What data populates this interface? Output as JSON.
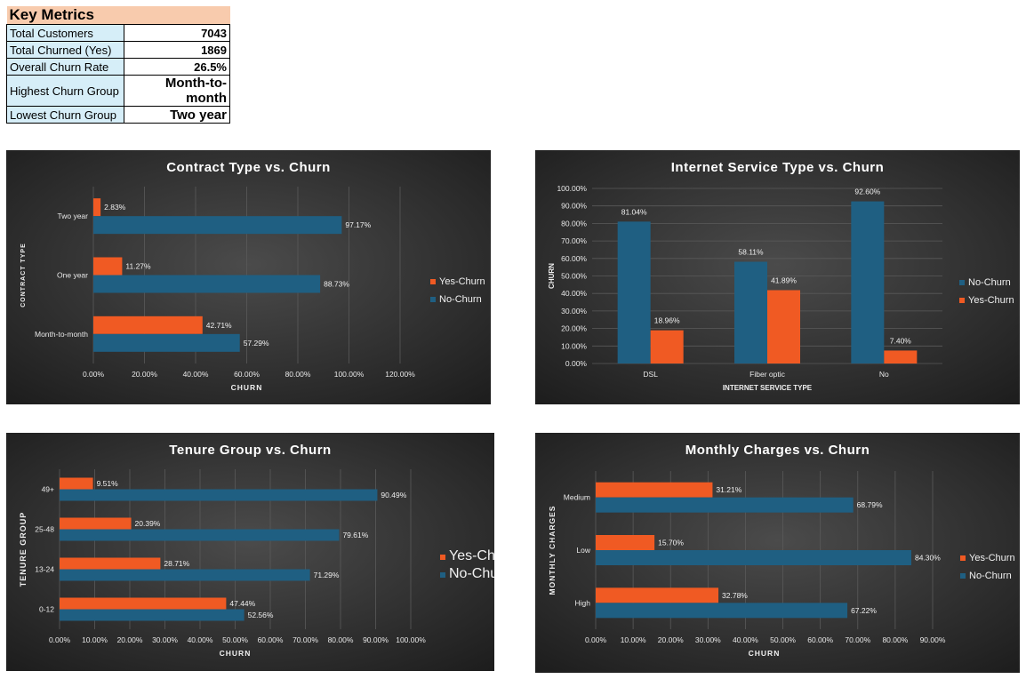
{
  "key_metrics": {
    "title": "Key Metrics",
    "rows": [
      {
        "label": "Total Customers",
        "value": "7043"
      },
      {
        "label": "Total Churned (Yes)",
        "value": "1869"
      },
      {
        "label": "Overall Churn Rate",
        "value": "26.5%"
      },
      {
        "label": "Highest Churn Group",
        "value": "Month-to-month"
      },
      {
        "label": "Lowest Churn Group",
        "value": "Two year"
      }
    ]
  },
  "colors": {
    "no_churn": "#1f5f82",
    "yes_churn": "#f05a23",
    "chart_bg": "#2e2e2e",
    "text": "#ffffff"
  },
  "chart_data": [
    {
      "type": "bar",
      "orientation": "horizontal",
      "title": "Contract Type vs. Churn",
      "xlabel": "CHURN",
      "ylabel": "CONTRACT TYPE",
      "categories": [
        "Month-to-month",
        "One year",
        "Two year"
      ],
      "series": [
        {
          "name": "Yes-Churn",
          "values": [
            42.71,
            11.27,
            2.83
          ]
        },
        {
          "name": "No-Churn",
          "values": [
            57.29,
            88.73,
            97.17
          ]
        }
      ],
      "xlim": [
        0,
        120
      ],
      "ticks": [
        "0.00%",
        "20.00%",
        "40.00%",
        "60.00%",
        "80.00%",
        "100.00%",
        "120.00%"
      ],
      "tick_values": [
        0,
        20,
        40,
        60,
        80,
        100,
        120
      ],
      "legend": "right",
      "grid": true
    },
    {
      "type": "bar",
      "orientation": "vertical",
      "title": "Internet Service Type vs. Churn",
      "xlabel": "INTERNET SERVICE TYPE",
      "ylabel": "CHURN",
      "categories": [
        "DSL",
        "Fiber optic",
        "No"
      ],
      "series": [
        {
          "name": "No-Churn",
          "values": [
            81.04,
            58.11,
            92.6
          ]
        },
        {
          "name": "Yes-Churn",
          "values": [
            18.96,
            41.89,
            7.4
          ]
        }
      ],
      "ylim": [
        0,
        100
      ],
      "ticks": [
        "0.00%",
        "10.00%",
        "20.00%",
        "30.00%",
        "40.00%",
        "50.00%",
        "60.00%",
        "70.00%",
        "80.00%",
        "90.00%",
        "100.00%"
      ],
      "tick_values": [
        0,
        10,
        20,
        30,
        40,
        50,
        60,
        70,
        80,
        90,
        100
      ],
      "legend": "right",
      "grid": true
    },
    {
      "type": "bar",
      "orientation": "horizontal",
      "title": "Tenure Group vs. Churn",
      "xlabel": "CHURN",
      "ylabel": "TENURE GROUP",
      "categories": [
        "0-12",
        "13-24",
        "25-48",
        "49+"
      ],
      "series": [
        {
          "name": "Yes-Churn",
          "values": [
            47.44,
            28.71,
            20.39,
            9.51
          ]
        },
        {
          "name": "No-Churn",
          "values": [
            52.56,
            71.29,
            79.61,
            90.49
          ]
        }
      ],
      "xlim": [
        0,
        100
      ],
      "ticks": [
        "0.00%",
        "10.00%",
        "20.00%",
        "30.00%",
        "40.00%",
        "50.00%",
        "60.00%",
        "70.00%",
        "80.00%",
        "90.00%",
        "100.00%"
      ],
      "tick_values": [
        0,
        10,
        20,
        30,
        40,
        50,
        60,
        70,
        80,
        90,
        100
      ],
      "legend": "right",
      "grid": true
    },
    {
      "type": "bar",
      "orientation": "horizontal",
      "title": "Monthly Charges vs. Churn",
      "xlabel": "CHURN",
      "ylabel": "MONTHLY CHARGES",
      "categories": [
        "High",
        "Low",
        "Medium"
      ],
      "series": [
        {
          "name": "Yes-Churn",
          "values": [
            32.78,
            15.7,
            31.21
          ]
        },
        {
          "name": "No-Churn",
          "values": [
            67.22,
            84.3,
            68.79
          ]
        }
      ],
      "xlim": [
        0,
        90
      ],
      "ticks": [
        "0.00%",
        "10.00%",
        "20.00%",
        "30.00%",
        "40.00%",
        "50.00%",
        "60.00%",
        "70.00%",
        "80.00%",
        "90.00%"
      ],
      "tick_values": [
        0,
        10,
        20,
        30,
        40,
        50,
        60,
        70,
        80,
        90
      ],
      "legend": "right",
      "grid": true
    }
  ]
}
